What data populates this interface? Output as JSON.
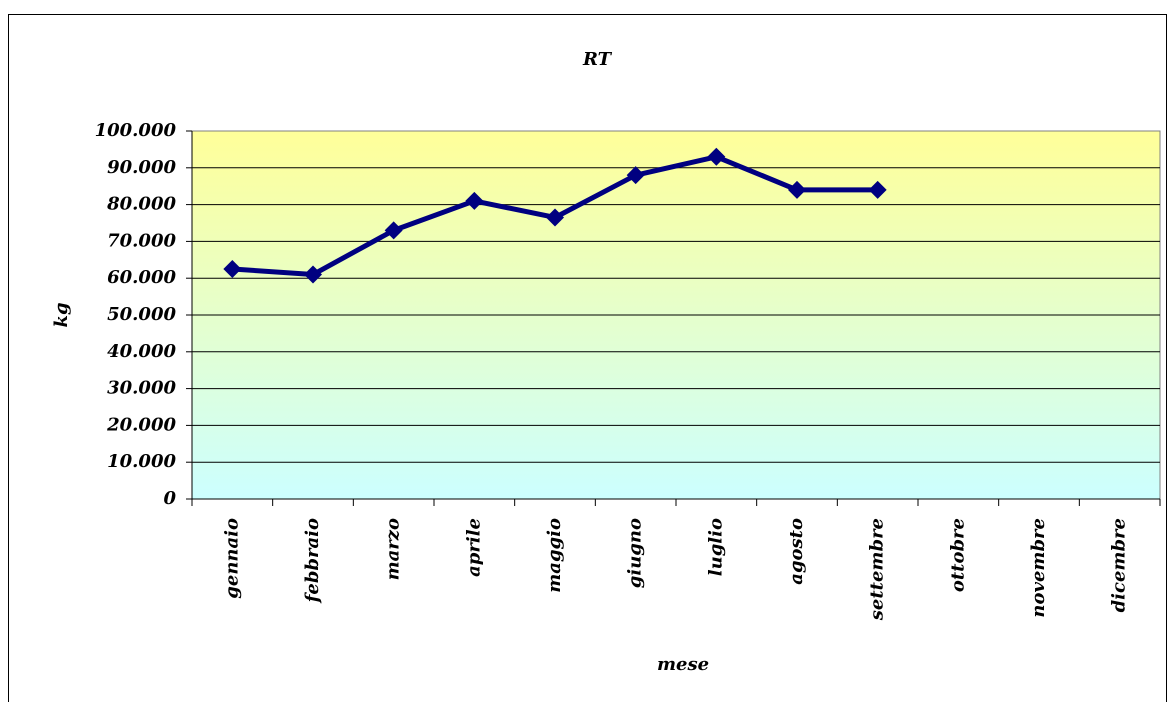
{
  "chart_data": {
    "type": "line",
    "title": "RT",
    "x_label": "mese",
    "y_label": "kg",
    "categories": [
      "gennaio",
      "febbraio",
      "marzo",
      "aprile",
      "maggio",
      "giugno",
      "luglio",
      "agosto",
      "settembre",
      "ottobre",
      "novembre",
      "dicembre"
    ],
    "series": [
      {
        "name": "RT",
        "color": "#000080",
        "values": [
          62500,
          61000,
          73000,
          81000,
          76500,
          88000,
          93000,
          84000,
          84000,
          null,
          null,
          null
        ]
      }
    ],
    "ylim": [
      0,
      100000
    ],
    "yticks": [
      0,
      {
        "value": 10000,
        "label": "10.000"
      },
      {
        "value": 20000,
        "label": "20.000"
      },
      {
        "value": 30000,
        "label": "30.000"
      },
      {
        "value": 40000,
        "label": "40.000"
      },
      {
        "value": 50000,
        "label": "50.000"
      },
      {
        "value": 60000,
        "label": "60.000"
      },
      {
        "value": 70000,
        "label": "70.000"
      },
      {
        "value": 80000,
        "label": "80.000"
      },
      {
        "value": 90000,
        "label": "90.000"
      },
      {
        "value": 100000,
        "label": "100.000"
      }
    ],
    "grid": true,
    "legend": false
  }
}
